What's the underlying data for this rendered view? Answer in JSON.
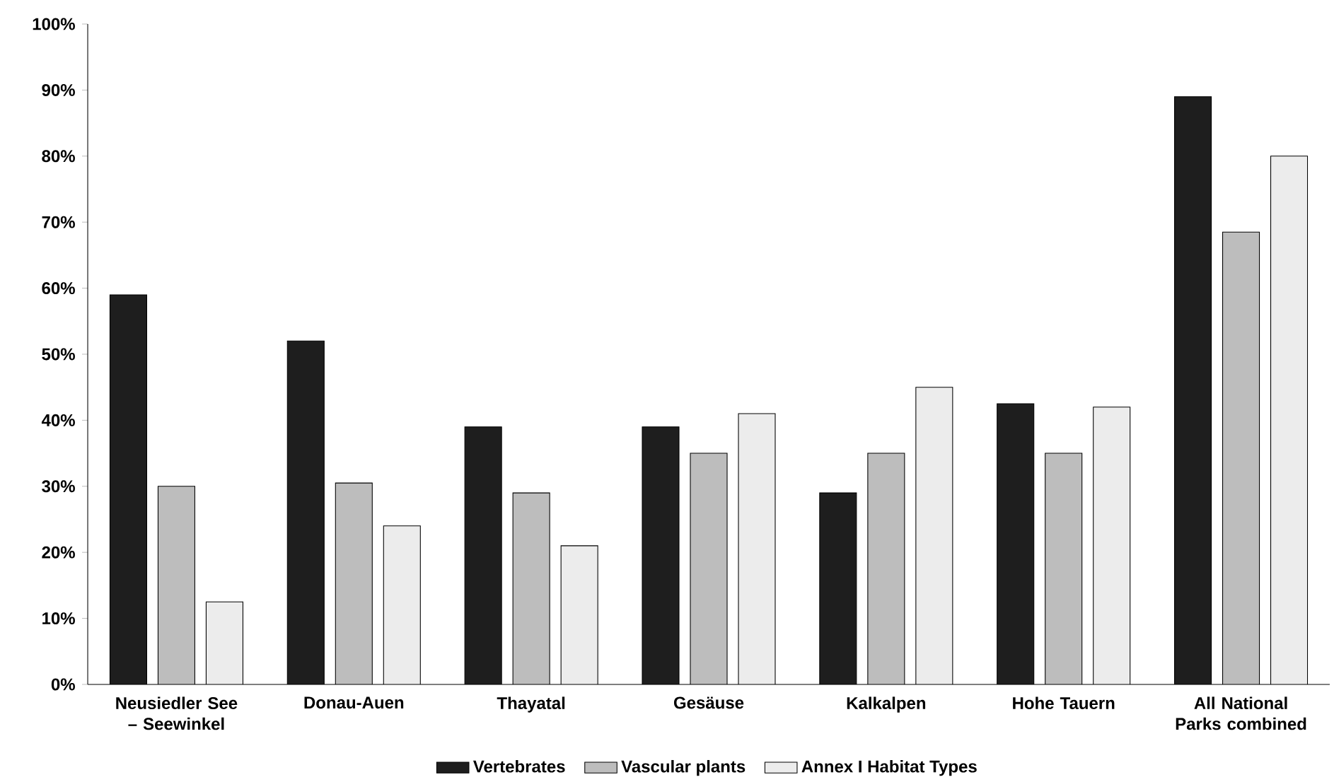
{
  "chart_data": {
    "type": "bar",
    "categories": [
      "Neusiedler See – Seewinkel",
      "Donau-Auen",
      "Thayatal",
      "Gesäuse",
      "Kalkalpen",
      "Hohe Tauern",
      "All National Parks combined"
    ],
    "series": [
      {
        "name": "Vertebrates",
        "color": "#1e1e1e",
        "values": [
          59,
          52,
          39,
          39,
          29,
          42.5,
          89
        ]
      },
      {
        "name": "Vascular plants",
        "color": "#bdbdbd",
        "values": [
          30,
          30.5,
          29,
          35,
          35,
          35,
          68.5
        ]
      },
      {
        "name": "Annex I Habitat Types",
        "color": "#ececec",
        "values": [
          12.5,
          24,
          21,
          41,
          45,
          42,
          80
        ]
      }
    ],
    "ylim": [
      0,
      100
    ],
    "yticks": [
      {
        "value": 0,
        "label": "0%"
      },
      {
        "value": 10,
        "label": "10%"
      },
      {
        "value": 20,
        "label": "20%"
      },
      {
        "value": 30,
        "label": "30%"
      },
      {
        "value": 40,
        "label": "40%"
      },
      {
        "value": 50,
        "label": "50%"
      },
      {
        "value": 60,
        "label": "60%"
      },
      {
        "value": 70,
        "label": "70%"
      },
      {
        "value": 80,
        "label": "80%"
      },
      {
        "value": 90,
        "label": "90%"
      },
      {
        "value": 100,
        "label": "100%"
      }
    ],
    "grid": false,
    "legend": "bottom"
  }
}
